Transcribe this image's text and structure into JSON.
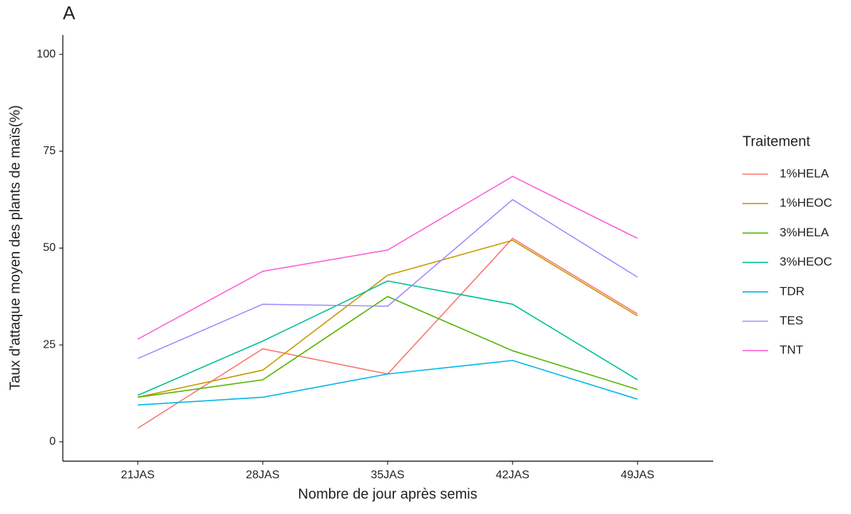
{
  "chart_data": {
    "type": "line",
    "title": "A",
    "x_label": "Nombre de jour après semis",
    "y_label": "Taux d'attaque moyen des plants de maïs(%)",
    "categories": [
      "21JAS",
      "28JAS",
      "35JAS",
      "42JAS",
      "49JAS"
    ],
    "ylim": [
      -5,
      105
    ],
    "yticks": [
      0,
      25,
      50,
      75,
      100
    ],
    "grid": false,
    "legend_title": "Traitement",
    "legend_position": "right",
    "series": [
      {
        "name": "1%HELA",
        "color": "#F8766D",
        "values": [
          3.5,
          24,
          17.5,
          52.5,
          33
        ]
      },
      {
        "name": "1%HEOC",
        "color": "#C49A00",
        "values": [
          11.5,
          18.5,
          43,
          52,
          32.5
        ]
      },
      {
        "name": "3%HELA",
        "color": "#53B400",
        "values": [
          11.5,
          16,
          37.5,
          23.5,
          13.5
        ]
      },
      {
        "name": "3%HEOC",
        "color": "#00C094",
        "values": [
          12,
          26,
          41.5,
          35.5,
          16
        ]
      },
      {
        "name": "TDR",
        "color": "#00B6EB",
        "values": [
          9.5,
          11.5,
          17.5,
          21,
          11
        ]
      },
      {
        "name": "TES",
        "color": "#A58AFF",
        "values": [
          21.5,
          35.5,
          35,
          62.5,
          42.5
        ]
      },
      {
        "name": "TNT",
        "color": "#FB61D7",
        "values": [
          26.5,
          44,
          49.5,
          68.5,
          52.5
        ]
      }
    ]
  }
}
